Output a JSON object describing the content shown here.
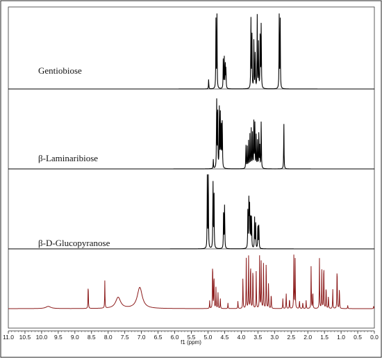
{
  "chart_data": {
    "type": "line",
    "xlabel": "f1 (ppm)",
    "xlim": [
      11.0,
      0.0
    ],
    "x_reversed": true,
    "xticks": [
      "11.0",
      "10.5",
      "10.0",
      "9.5",
      "9.0",
      "8.5",
      "8.0",
      "7.5",
      "7.0",
      "6.5",
      "6.0",
      "5.5",
      "5.0",
      "4.5",
      "4.0",
      "3.5",
      "3.0",
      "2.5",
      "2.0",
      "1.5",
      "1.0",
      "0.5",
      "0.0"
    ],
    "grid": false,
    "series": [
      {
        "name": "Gentiobiose",
        "color": "#000000",
        "peaks": [
          {
            "ppm": 4.98,
            "height": 0.13
          },
          {
            "ppm": 4.76,
            "height": 0.95
          },
          {
            "ppm": 4.73,
            "height": 0.95
          },
          {
            "ppm": 4.54,
            "height": 0.4
          },
          {
            "ppm": 4.51,
            "height": 0.4
          },
          {
            "ppm": 4.48,
            "height": 0.32
          },
          {
            "ppm": 4.46,
            "height": 0.3
          },
          {
            "ppm": 3.71,
            "height": 0.95
          },
          {
            "ppm": 3.68,
            "height": 0.85
          },
          {
            "ppm": 3.62,
            "height": 0.7
          },
          {
            "ppm": 3.58,
            "height": 0.55
          },
          {
            "ppm": 3.52,
            "height": 0.95
          },
          {
            "ppm": 3.48,
            "height": 0.6
          },
          {
            "ppm": 3.43,
            "height": 0.92
          },
          {
            "ppm": 3.4,
            "height": 0.92
          },
          {
            "ppm": 2.86,
            "height": 0.95
          },
          {
            "ppm": 2.83,
            "height": 0.95
          }
        ]
      },
      {
        "name": "β-Laminaribiose",
        "color": "#000000",
        "peaks": [
          {
            "ppm": 4.84,
            "height": 0.12
          },
          {
            "ppm": 4.74,
            "height": 0.98
          },
          {
            "ppm": 4.71,
            "height": 0.98
          },
          {
            "ppm": 4.66,
            "height": 0.78
          },
          {
            "ppm": 4.63,
            "height": 0.78
          },
          {
            "ppm": 4.6,
            "height": 0.72
          },
          {
            "ppm": 4.57,
            "height": 0.72
          },
          {
            "ppm": 3.86,
            "height": 0.34
          },
          {
            "ppm": 3.82,
            "height": 0.3
          },
          {
            "ppm": 3.78,
            "height": 0.36
          },
          {
            "ppm": 3.74,
            "height": 0.44
          },
          {
            "ppm": 3.7,
            "height": 0.52
          },
          {
            "ppm": 3.66,
            "height": 0.48
          },
          {
            "ppm": 3.62,
            "height": 0.68
          },
          {
            "ppm": 3.59,
            "height": 0.58
          },
          {
            "ppm": 3.55,
            "height": 0.45
          },
          {
            "ppm": 3.51,
            "height": 0.4
          },
          {
            "ppm": 3.47,
            "height": 0.55
          },
          {
            "ppm": 3.44,
            "height": 0.3
          },
          {
            "ppm": 3.4,
            "height": 0.68
          },
          {
            "ppm": 2.72,
            "height": 0.62
          }
        ]
      },
      {
        "name": "β-D-Glucopyranose",
        "color": "#000000",
        "peaks": [
          {
            "ppm": 5.02,
            "height": 0.95
          },
          {
            "ppm": 4.99,
            "height": 0.95
          },
          {
            "ppm": 4.85,
            "height": 0.95
          },
          {
            "ppm": 4.82,
            "height": 0.95
          },
          {
            "ppm": 4.53,
            "height": 0.62
          },
          {
            "ppm": 4.5,
            "height": 0.62
          },
          {
            "ppm": 3.8,
            "height": 0.6
          },
          {
            "ppm": 3.77,
            "height": 0.65
          },
          {
            "ppm": 3.75,
            "height": 0.6
          },
          {
            "ppm": 3.72,
            "height": 0.52
          },
          {
            "ppm": 3.69,
            "height": 0.48
          },
          {
            "ppm": 3.6,
            "height": 0.42
          },
          {
            "ppm": 3.57,
            "height": 0.4
          },
          {
            "ppm": 3.5,
            "height": 0.38
          },
          {
            "ppm": 3.47,
            "height": 0.36
          }
        ]
      },
      {
        "name": "",
        "color": "#8b1a1a",
        "peaks": [
          {
            "ppm": 8.6,
            "height": 0.48
          },
          {
            "ppm": 8.1,
            "height": 0.5
          },
          {
            "ppm": 7.7,
            "height": 0.2,
            "broad": true
          },
          {
            "ppm": 7.05,
            "height": 0.38,
            "broad": true
          },
          {
            "ppm": 9.8,
            "height": 0.04,
            "broad": true
          },
          {
            "ppm": 4.95,
            "height": 0.14
          },
          {
            "ppm": 4.86,
            "height": 0.95
          },
          {
            "ppm": 4.82,
            "height": 0.7
          },
          {
            "ppm": 4.76,
            "height": 0.4
          },
          {
            "ppm": 4.7,
            "height": 0.3
          },
          {
            "ppm": 4.63,
            "height": 0.2
          },
          {
            "ppm": 4.4,
            "height": 0.1
          },
          {
            "ppm": 4.1,
            "height": 0.14
          },
          {
            "ppm": 3.95,
            "height": 0.6
          },
          {
            "ppm": 3.85,
            "height": 0.9
          },
          {
            "ppm": 3.78,
            "height": 0.95
          },
          {
            "ppm": 3.72,
            "height": 0.95
          },
          {
            "ppm": 3.65,
            "height": 0.85
          },
          {
            "ppm": 3.55,
            "height": 0.7
          },
          {
            "ppm": 3.45,
            "height": 0.95
          },
          {
            "ppm": 3.4,
            "height": 0.95
          },
          {
            "ppm": 3.33,
            "height": 0.85
          },
          {
            "ppm": 3.25,
            "height": 0.95
          },
          {
            "ppm": 3.18,
            "height": 0.5
          },
          {
            "ppm": 3.1,
            "height": 0.3
          },
          {
            "ppm": 2.75,
            "height": 0.18
          },
          {
            "ppm": 2.65,
            "height": 0.3
          },
          {
            "ppm": 2.55,
            "height": 0.2
          },
          {
            "ppm": 2.42,
            "height": 0.95
          },
          {
            "ppm": 2.38,
            "height": 0.9
          },
          {
            "ppm": 2.25,
            "height": 0.16
          },
          {
            "ppm": 2.15,
            "height": 0.12
          },
          {
            "ppm": 2.05,
            "height": 0.15
          },
          {
            "ppm": 1.9,
            "height": 0.8
          },
          {
            "ppm": 1.85,
            "height": 0.35
          },
          {
            "ppm": 1.65,
            "height": 0.9
          },
          {
            "ppm": 1.58,
            "height": 0.7
          },
          {
            "ppm": 1.52,
            "height": 0.92
          },
          {
            "ppm": 1.45,
            "height": 0.45
          },
          {
            "ppm": 1.38,
            "height": 0.25
          },
          {
            "ppm": 1.25,
            "height": 0.35
          },
          {
            "ppm": 1.12,
            "height": 0.85
          },
          {
            "ppm": 1.05,
            "height": 0.4
          },
          {
            "ppm": 0.8,
            "height": 0.06
          },
          {
            "ppm": 0.02,
            "height": 0.05
          }
        ]
      }
    ]
  }
}
